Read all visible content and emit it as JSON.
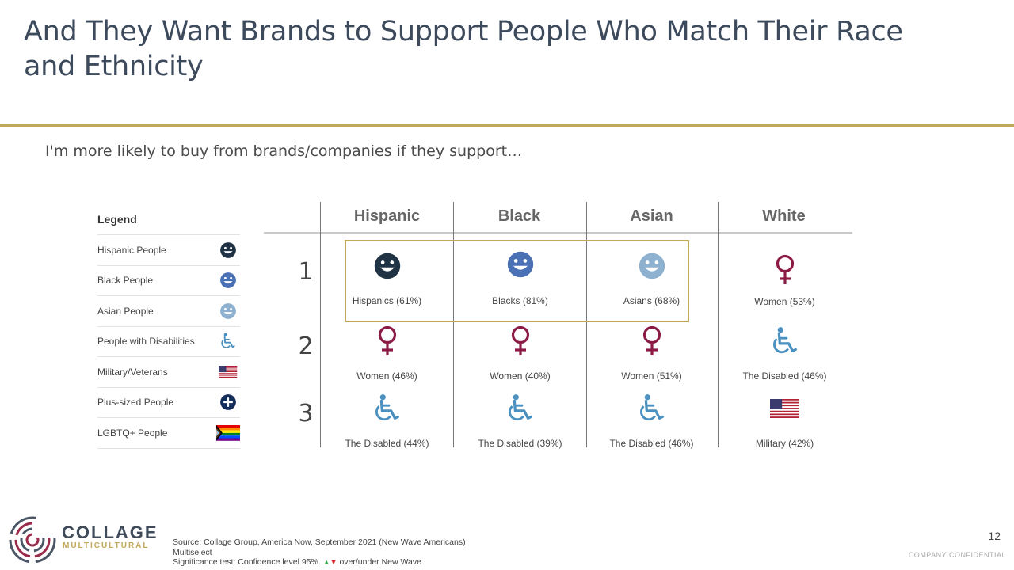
{
  "title": "And They Want Brands to Support People Who Match Their Race and Ethnicity",
  "subtitle": "I'm more likely to buy from brands/companies if they support…",
  "legend": {
    "heading": "Legend",
    "items": [
      {
        "label": "Hispanic People",
        "icon": "smiley-icon",
        "color": "#1f3345"
      },
      {
        "label": "Black People",
        "icon": "smiley-icon",
        "color": "#4a70b5"
      },
      {
        "label": "Asian People",
        "icon": "smiley-icon",
        "color": "#8db1cf"
      },
      {
        "label": "People with Disabilities",
        "icon": "wheelchair-icon",
        "color": "#4a90c0"
      },
      {
        "label": "Military/Veterans",
        "icon": "us-flag-icon"
      },
      {
        "label": "Plus-sized People",
        "icon": "plus-circle-icon",
        "color": "#142d5a"
      },
      {
        "label": "LGBTQ+ People",
        "icon": "progress-pride-flag-icon"
      }
    ]
  },
  "table": {
    "columns": [
      "Hispanic",
      "Black",
      "Asian",
      "White"
    ],
    "rows": [
      {
        "rank": "1",
        "cells": [
          {
            "icon": "smiley-icon",
            "color": "#1f3345",
            "label": "Hispanics (61%)"
          },
          {
            "icon": "smiley-icon",
            "color": "#4a70b5",
            "label": "Blacks (81%)"
          },
          {
            "icon": "smiley-icon",
            "color": "#8db1cf",
            "label": "Asians (68%)"
          },
          {
            "icon": "female-icon",
            "color": "#8b1a44",
            "label": "Women (53%)"
          }
        ]
      },
      {
        "rank": "2",
        "cells": [
          {
            "icon": "female-icon",
            "color": "#8b1a44",
            "label": "Women (46%)"
          },
          {
            "icon": "female-icon",
            "color": "#8b1a44",
            "label": "Women (40%)"
          },
          {
            "icon": "female-icon",
            "color": "#8b1a44",
            "label": "Women (51%)"
          },
          {
            "icon": "wheelchair-icon",
            "color": "#4a90c0",
            "label": "The Disabled (46%)"
          }
        ]
      },
      {
        "rank": "3",
        "cells": [
          {
            "icon": "wheelchair-icon",
            "color": "#4a90c0",
            "label": "The Disabled (44%)"
          },
          {
            "icon": "wheelchair-icon",
            "color": "#4a90c0",
            "label": "The Disabled (39%)"
          },
          {
            "icon": "wheelchair-icon",
            "color": "#4a90c0",
            "label": "The Disabled (46%)"
          },
          {
            "icon": "us-flag-icon",
            "label": "Military (42%)"
          }
        ]
      }
    ]
  },
  "logo": {
    "name": "COLLAGE",
    "tagline": "MULTICULTURAL",
    "accent": "#c2a85a"
  },
  "footer": {
    "source": "Source: Collage Group, America Now, September 2021 (New Wave Americans)",
    "method": "Multiselect",
    "significance_prefix": "Significance test: Confidence level 95%.",
    "significance_suffix": "over/under New Wave",
    "page_number": "12",
    "confidential": "COMPANY CONFIDENTIAL"
  }
}
